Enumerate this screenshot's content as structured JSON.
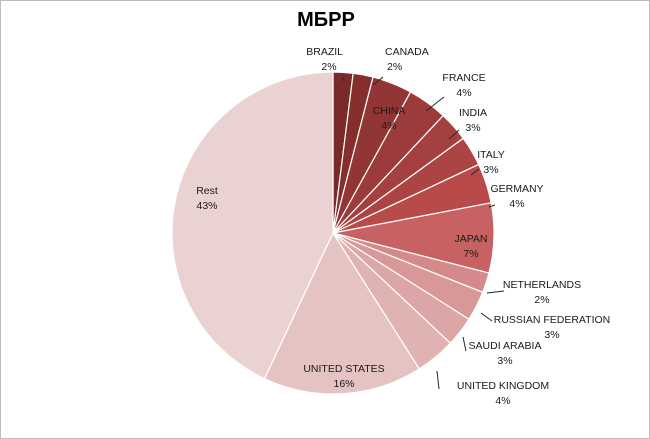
{
  "chart_data": {
    "type": "pie",
    "title": "МБРР",
    "slices": [
      {
        "label": "BRAZIL",
        "value": 2,
        "display": "2%",
        "color": "#7a2a2a"
      },
      {
        "label": "CANADA",
        "value": 2,
        "display": "2%",
        "color": "#852e2e"
      },
      {
        "label": "CHINA",
        "value": 4,
        "display": "4%",
        "color": "#923535"
      },
      {
        "label": "FRANCE",
        "value": 4,
        "display": "4%",
        "color": "#9c3b3b"
      },
      {
        "label": "INDIA",
        "value": 3,
        "display": "3%",
        "color": "#a44040"
      },
      {
        "label": "ITALY",
        "value": 3,
        "display": "3%",
        "color": "#ac4444"
      },
      {
        "label": "GERMANY",
        "value": 4,
        "display": "4%",
        "color": "#b84a4a"
      },
      {
        "label": "JAPAN",
        "value": 7,
        "display": "7%",
        "color": "#c86262"
      },
      {
        "label": "NETHERLANDS",
        "value": 2,
        "display": "2%",
        "color": "#d48a8a"
      },
      {
        "label": "RUSSIAN FEDERATION",
        "value": 3,
        "display": "3%",
        "color": "#d89898"
      },
      {
        "label": "SAUDI ARABIA",
        "value": 3,
        "display": "3%",
        "color": "#dca6a6"
      },
      {
        "label": "UNITED KINGDOM",
        "value": 4,
        "display": "4%",
        "color": "#e0b2b2"
      },
      {
        "label": "UNITED STATES",
        "value": 16,
        "display": "16%",
        "color": "#e6c3c3"
      },
      {
        "label": "Rest",
        "value": 43,
        "display": "43%",
        "color": "#ebd2d2"
      }
    ]
  }
}
